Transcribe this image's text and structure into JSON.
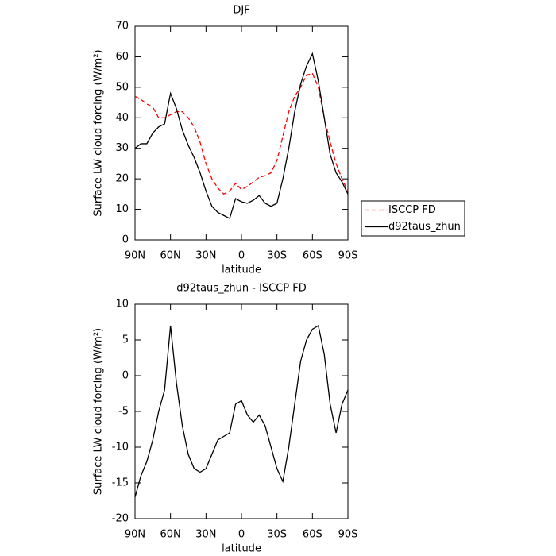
{
  "chart_data": [
    {
      "type": "line",
      "title": "DJF",
      "xlabel": "latitude",
      "ylabel": "Surface LW cloud forcing (W/m²)",
      "x": [
        90,
        85,
        80,
        75,
        70,
        65,
        60,
        55,
        50,
        45,
        40,
        35,
        30,
        25,
        20,
        15,
        10,
        5,
        0,
        -5,
        -10,
        -15,
        -20,
        -25,
        -30,
        -35,
        -40,
        -45,
        -50,
        -55,
        -60,
        -65,
        -70,
        -75,
        -80,
        -85,
        -90
      ],
      "xlim": [
        90,
        -90
      ],
      "xticks": [
        {
          "value": 90,
          "label": "90N"
        },
        {
          "value": 60,
          "label": "60N"
        },
        {
          "value": 30,
          "label": "30N"
        },
        0,
        {
          "value": -30,
          "label": "30S"
        },
        {
          "value": -60,
          "label": "60S"
        },
        {
          "value": -90,
          "label": "90S"
        }
      ],
      "ylim": [
        0,
        70
      ],
      "yticks": [
        0,
        10,
        20,
        30,
        40,
        50,
        60,
        70
      ],
      "legend": "right",
      "series": [
        {
          "name": "ISCCP FD",
          "color": "#ff0000",
          "dash": true,
          "values": [
            47,
            46,
            44.5,
            43.5,
            40,
            40,
            41,
            42,
            42,
            40,
            37,
            32,
            25,
            20,
            17,
            15,
            16,
            18.5,
            16.5,
            17.5,
            19,
            20.5,
            21,
            22,
            26,
            34,
            42,
            47,
            50,
            54,
            54.5,
            50,
            40,
            32,
            25,
            20,
            16
          ]
        },
        {
          "name": "d92taus_zhun",
          "color": "#000000",
          "dash": false,
          "values": [
            30,
            31.5,
            31.5,
            35,
            37,
            38,
            48,
            43,
            36,
            31,
            27,
            22,
            16,
            11,
            9,
            8,
            7,
            13.5,
            12.5,
            12,
            13,
            14.5,
            12,
            11,
            12,
            20,
            30,
            42,
            51,
            57,
            61,
            52,
            40,
            28,
            22,
            19,
            15
          ]
        }
      ]
    },
    {
      "type": "line",
      "title": "d92taus_zhun - ISCCP FD",
      "xlabel": "latitude",
      "ylabel": "Surface LW cloud forcing (W/m²)",
      "x": [
        90,
        85,
        80,
        75,
        70,
        65,
        60,
        55,
        50,
        45,
        40,
        35,
        30,
        25,
        20,
        15,
        10,
        5,
        0,
        -5,
        -10,
        -15,
        -20,
        -25,
        -30,
        -35,
        -40,
        -45,
        -50,
        -55,
        -60,
        -65,
        -70,
        -75,
        -80,
        -85,
        -90
      ],
      "xlim": [
        90,
        -90
      ],
      "xticks": [
        {
          "value": 90,
          "label": "90N"
        },
        {
          "value": 60,
          "label": "60N"
        },
        {
          "value": 30,
          "label": "30N"
        },
        0,
        {
          "value": -30,
          "label": "30S"
        },
        {
          "value": -60,
          "label": "60S"
        },
        {
          "value": -90,
          "label": "90S"
        }
      ],
      "ylim": [
        -20,
        10
      ],
      "yticks": [
        -20,
        -15,
        -10,
        -5,
        0,
        5,
        10
      ],
      "series": [
        {
          "color": "#000000",
          "dash": false,
          "values": [
            -17,
            -14,
            -12,
            -9,
            -5,
            -2,
            7,
            -1,
            -7,
            -11,
            -13,
            -13.5,
            -13,
            -11,
            -9,
            -8.5,
            -8,
            -4,
            -3.5,
            -5.5,
            -6.5,
            -5.5,
            -7,
            -10,
            -13,
            -14.8,
            -10,
            -4,
            2,
            5,
            6.5,
            7,
            3,
            -4,
            -8,
            -4,
            -2
          ]
        }
      ]
    }
  ]
}
